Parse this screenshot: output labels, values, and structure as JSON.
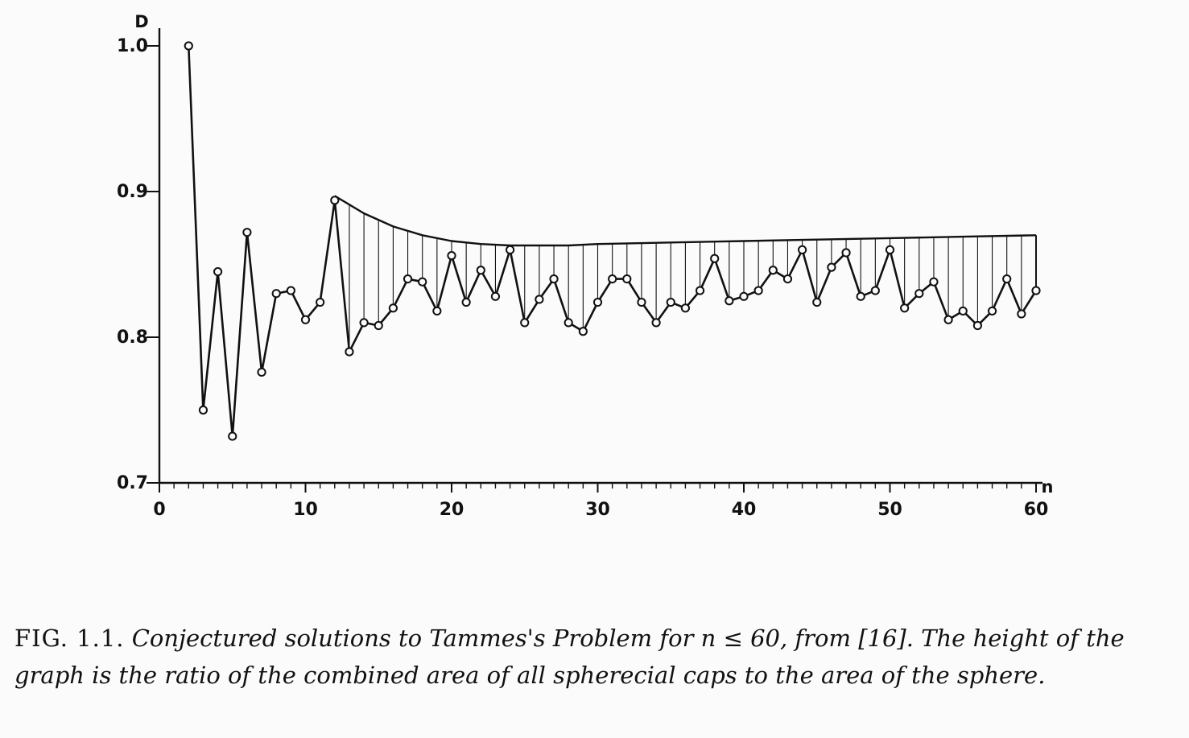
{
  "chart_data": {
    "type": "line",
    "ylabel": "D",
    "xlabel": "n",
    "xlim": [
      0,
      60
    ],
    "ylim": [
      0.7,
      1.0
    ],
    "x_ticks": [
      "0",
      "10",
      "20",
      "30",
      "40",
      "50",
      "60"
    ],
    "y_ticks": [
      "0.7",
      "0.8",
      "0.9",
      "1.0"
    ],
    "x_minor_ticks_every": 1,
    "grid": false,
    "series": [
      {
        "style": "solid line with hollow circle markers",
        "x": [
          2,
          3,
          4,
          5,
          6,
          7,
          8,
          9,
          10,
          11,
          12,
          13,
          14,
          15,
          16,
          17,
          18,
          19,
          20,
          21,
          22,
          23,
          24,
          25,
          26,
          27,
          28,
          29,
          30,
          31,
          32,
          33,
          34,
          35,
          36,
          37,
          38,
          39,
          40,
          41,
          42,
          43,
          44,
          45,
          46,
          47,
          48,
          49,
          50,
          51,
          52,
          53,
          54,
          55,
          56,
          57,
          58,
          59,
          60
        ],
        "y": [
          1.0,
          0.75,
          0.845,
          0.732,
          0.872,
          0.776,
          0.83,
          0.832,
          0.812,
          0.824,
          0.894,
          0.79,
          0.81,
          0.808,
          0.82,
          0.84,
          0.838,
          0.818,
          0.856,
          0.824,
          0.846,
          0.828,
          0.86,
          0.81,
          0.826,
          0.84,
          0.81,
          0.804,
          0.824,
          0.84,
          0.84,
          0.824,
          0.81,
          0.824,
          0.82,
          0.832,
          0.854,
          0.825,
          0.828,
          0.832,
          0.846,
          0.84,
          0.86,
          0.824,
          0.848,
          0.858,
          0.828,
          0.832,
          0.86,
          0.82,
          0.83,
          0.838,
          0.812,
          0.818,
          0.808,
          0.818,
          0.84,
          0.816,
          0.832
        ]
      },
      {
        "style": "upper envelope, solid line without markers",
        "x": [
          12,
          14,
          16,
          18,
          20,
          22,
          24,
          26,
          28,
          30,
          35,
          40,
          45,
          50,
          55,
          60
        ],
        "y": [
          0.897,
          0.885,
          0.876,
          0.87,
          0.866,
          0.864,
          0.863,
          0.863,
          0.863,
          0.864,
          0.865,
          0.866,
          0.867,
          0.868,
          0.869,
          0.87
        ]
      }
    ],
    "hatching": "vertical lines from n=12 to n=60 between the data line and the upper envelope"
  },
  "caption": {
    "label": "FIG. 1.1.",
    "text": "Conjectured solutions to Tammes's Problem for n ≤ 60, from [16]. The height of the graph is the ratio of the combined area of all spherecial caps to the area of the sphere."
  },
  "colors": {
    "ink": "#111111",
    "paper": "#fbfbfb",
    "bleed_through": "#d9d9d9"
  }
}
